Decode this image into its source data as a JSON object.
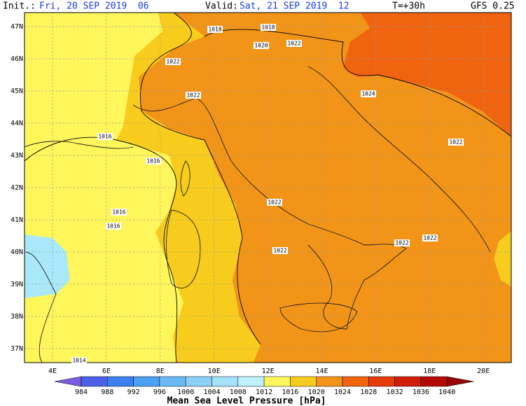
{
  "header": {
    "init_label": "Init.:",
    "init_value": "Fri, 20 SEP 2019  06",
    "valid_label": "Valid:",
    "valid_value": "Sat, 21 SEP 2019  12",
    "lead": "T=+30h",
    "model": "GFS 0.25"
  },
  "latitudes": [
    "47N",
    "46N",
    "45N",
    "44N",
    "43N",
    "42N",
    "41N",
    "40N",
    "39N",
    "38N",
    "37N"
  ],
  "longitudes": [
    "4E",
    "6E",
    "8E",
    "10E",
    "12E",
    "14E",
    "16E",
    "18E",
    "20E"
  ],
  "isobar_labels": [
    "1016",
    "1016",
    "1016",
    "1016",
    "1018",
    "1018",
    "1020",
    "1022",
    "1022",
    "1022",
    "1022",
    "1022",
    "1022",
    "1022",
    "1024",
    "1022",
    "1014"
  ],
  "colorbar": {
    "labels": [
      "984",
      "988",
      "992",
      "996",
      "1000",
      "1004",
      "1008",
      "1012",
      "1016",
      "1020",
      "1024",
      "1028",
      "1032",
      "1036",
      "1040"
    ],
    "title": "Mean Sea Level Pressure [hPa]"
  }
}
